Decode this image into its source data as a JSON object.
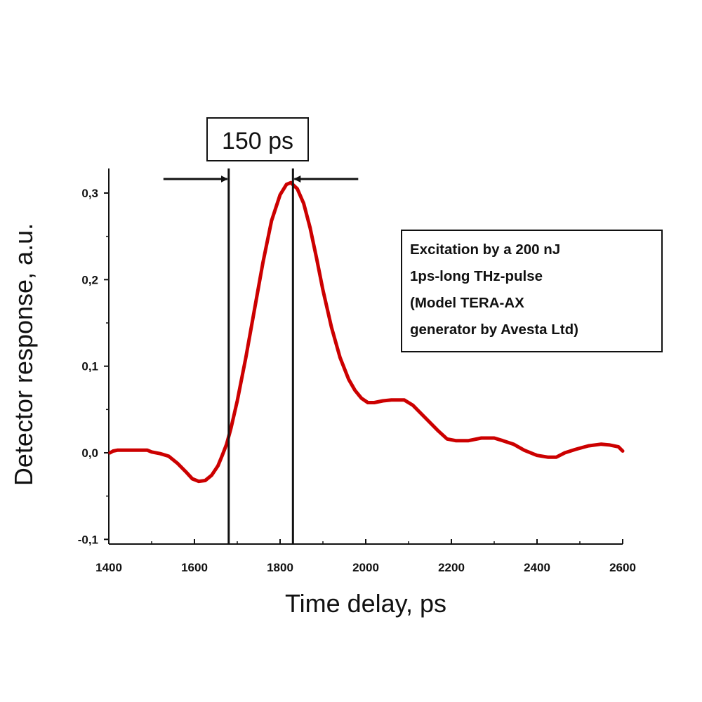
{
  "chart_data": {
    "type": "line",
    "title": "",
    "xlabel": "Time delay, ps",
    "ylabel": "Detector response, a.u.",
    "xlim": [
      1400,
      2600
    ],
    "ylim": [
      -0.1,
      0.33
    ],
    "x_ticks": [
      1400,
      1600,
      1800,
      2000,
      2200,
      2400,
      2600
    ],
    "x_tick_labels": [
      "1400",
      "1600",
      "1800",
      "2000",
      "2200",
      "2400",
      "2600"
    ],
    "y_ticks": [
      -0.1,
      0.0,
      0.1,
      0.2,
      0.3
    ],
    "y_tick_labels": [
      "-0,1",
      "0,0",
      "0,1",
      "0,2",
      "0,3"
    ],
    "grid": false,
    "series": [
      {
        "color": "#cc0000",
        "points": [
          [
            1403,
            0.0
          ],
          [
            1410,
            0.002
          ],
          [
            1420,
            0.003
          ],
          [
            1450,
            0.003
          ],
          [
            1490,
            0.003
          ],
          [
            1500,
            0.001
          ],
          [
            1520,
            -0.001
          ],
          [
            1540,
            -0.004
          ],
          [
            1560,
            -0.012
          ],
          [
            1580,
            -0.022
          ],
          [
            1595,
            -0.03
          ],
          [
            1610,
            -0.033
          ],
          [
            1625,
            -0.032
          ],
          [
            1640,
            -0.026
          ],
          [
            1655,
            -0.015
          ],
          [
            1665,
            -0.003
          ],
          [
            1675,
            0.01
          ],
          [
            1685,
            0.028
          ],
          [
            1700,
            0.06
          ],
          [
            1720,
            0.11
          ],
          [
            1740,
            0.165
          ],
          [
            1760,
            0.22
          ],
          [
            1780,
            0.268
          ],
          [
            1800,
            0.298
          ],
          [
            1815,
            0.31
          ],
          [
            1825,
            0.312
          ],
          [
            1840,
            0.305
          ],
          [
            1855,
            0.288
          ],
          [
            1870,
            0.26
          ],
          [
            1885,
            0.225
          ],
          [
            1900,
            0.188
          ],
          [
            1920,
            0.145
          ],
          [
            1940,
            0.11
          ],
          [
            1960,
            0.085
          ],
          [
            1975,
            0.072
          ],
          [
            1990,
            0.063
          ],
          [
            2005,
            0.058
          ],
          [
            2020,
            0.058
          ],
          [
            2040,
            0.06
          ],
          [
            2060,
            0.061
          ],
          [
            2090,
            0.061
          ],
          [
            2110,
            0.055
          ],
          [
            2140,
            0.04
          ],
          [
            2170,
            0.025
          ],
          [
            2190,
            0.016
          ],
          [
            2210,
            0.014
          ],
          [
            2240,
            0.014
          ],
          [
            2270,
            0.017
          ],
          [
            2300,
            0.017
          ],
          [
            2320,
            0.014
          ],
          [
            2345,
            0.01
          ],
          [
            2370,
            0.003
          ],
          [
            2400,
            -0.003
          ],
          [
            2425,
            -0.005
          ],
          [
            2445,
            -0.005
          ],
          [
            2465,
            0.0
          ],
          [
            2490,
            0.004
          ],
          [
            2520,
            0.008
          ],
          [
            2550,
            0.01
          ],
          [
            2570,
            0.009
          ],
          [
            2590,
            0.007
          ],
          [
            2600,
            0.002
          ]
        ]
      }
    ],
    "annotations": {
      "interval_label": "150 ps",
      "marker_lines_x": [
        1680,
        1830
      ],
      "textbox_lines": [
        "Excitation by a 200 nJ",
        "1ps-long THz-pulse",
        "(Model TERA-AX",
        "generator by Avesta Ltd)"
      ]
    }
  }
}
